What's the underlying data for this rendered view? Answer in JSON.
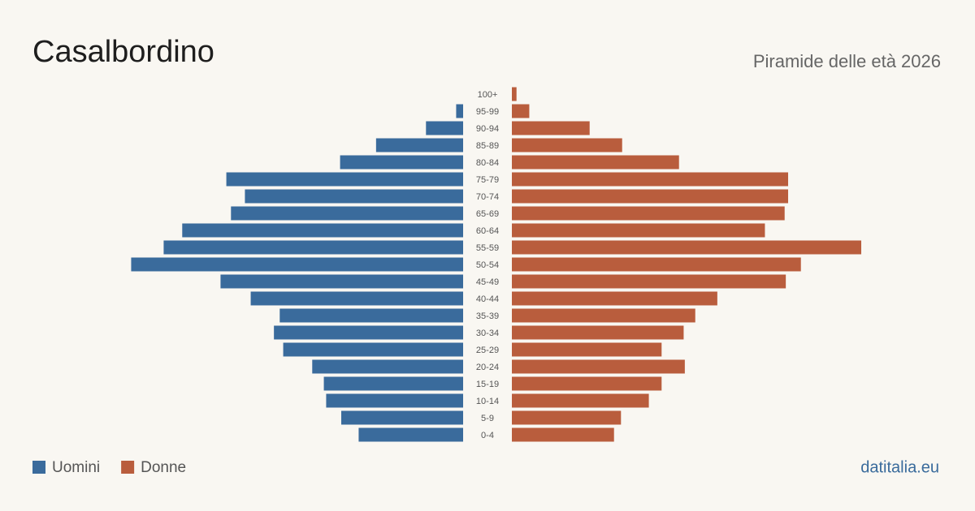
{
  "chart_data": {
    "type": "pyramid",
    "title": "Casalbordino",
    "subtitle": "Piramide delle età 2026",
    "source": "datitalia.eu",
    "categories": [
      "100+",
      "95-99",
      "90-94",
      "85-89",
      "80-84",
      "75-79",
      "70-74",
      "65-69",
      "60-64",
      "55-59",
      "50-54",
      "45-49",
      "40-44",
      "35-39",
      "30-34",
      "25-29",
      "20-24",
      "15-19",
      "10-14",
      "5-9",
      "0-4"
    ],
    "series": [
      {
        "name": "Uomini",
        "color": "#3a6b9c",
        "values": [
          0,
          6,
          32,
          75,
          106,
          204,
          188,
          200,
          242,
          258,
          286,
          209,
          183,
          158,
          163,
          155,
          130,
          120,
          118,
          105,
          90
        ]
      },
      {
        "name": "Donne",
        "color": "#b95d3d",
        "values": [
          4,
          15,
          67,
          95,
          144,
          238,
          238,
          235,
          218,
          301,
          249,
          236,
          177,
          158,
          148,
          129,
          149,
          129,
          118,
          94,
          88
        ]
      }
    ]
  }
}
